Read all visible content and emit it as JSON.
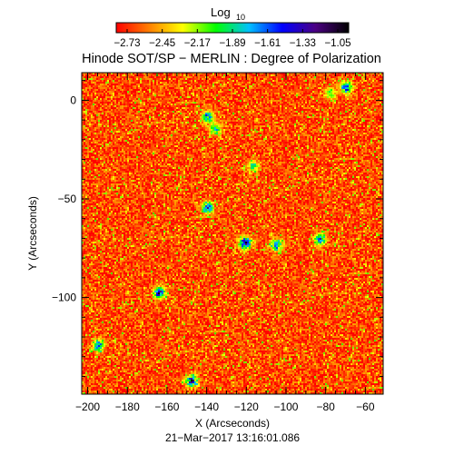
{
  "chart_data": {
    "type": "heatmap",
    "title": "Hinode SOT/SP − MERLIN : Degree of Polarization",
    "xlabel": "X (Arcseconds)",
    "ylabel": "Y (Arcseconds)",
    "timestamp": "21−Mar−2017 13:16:01.086",
    "colorbar": {
      "label_main": "Log",
      "label_sub": "10",
      "tick_labels": [
        "−2.73",
        "−2.45",
        "−2.17",
        "−1.89",
        "−1.61",
        "−1.33",
        "−1.05"
      ],
      "range": [
        -2.73,
        -1.05
      ],
      "colors": [
        "#ff0000",
        "#ff8000",
        "#ffff00",
        "#00ff00",
        "#00c0ff",
        "#0000ff",
        "#4b0082",
        "#000000"
      ]
    },
    "xlim": [
      -203,
      -51
    ],
    "ylim": [
      -149,
      14
    ],
    "x_ticks": [
      -200,
      -180,
      -160,
      -140,
      -120,
      -100,
      -80,
      -60
    ],
    "x_tick_labels": [
      "−200",
      "−180",
      "−160",
      "−140",
      "−120",
      "−100",
      "−80",
      "−60"
    ],
    "y_ticks": [
      0,
      -50,
      -100
    ],
    "y_tick_labels": [
      "0",
      "−50",
      "−100"
    ],
    "background_level": -2.6,
    "features": [
      {
        "x": -121,
        "y": -72,
        "peak": -1.2
      },
      {
        "x": -164,
        "y": -97,
        "peak": -1.3
      },
      {
        "x": -148,
        "y": -142,
        "peak": -1.35
      },
      {
        "x": -70,
        "y": 7,
        "peak": -1.4
      },
      {
        "x": -83,
        "y": -70,
        "peak": -1.5
      },
      {
        "x": -140,
        "y": -54,
        "peak": -1.5
      },
      {
        "x": -140,
        "y": -8,
        "peak": -1.55
      },
      {
        "x": -105,
        "y": -73,
        "peak": -1.6
      },
      {
        "x": -195,
        "y": -124,
        "peak": -1.5
      },
      {
        "x": -78,
        "y": 4,
        "peak": -1.9
      },
      {
        "x": -136,
        "y": -14,
        "peak": -1.8
      },
      {
        "x": -117,
        "y": -33,
        "peak": -1.9
      }
    ]
  }
}
